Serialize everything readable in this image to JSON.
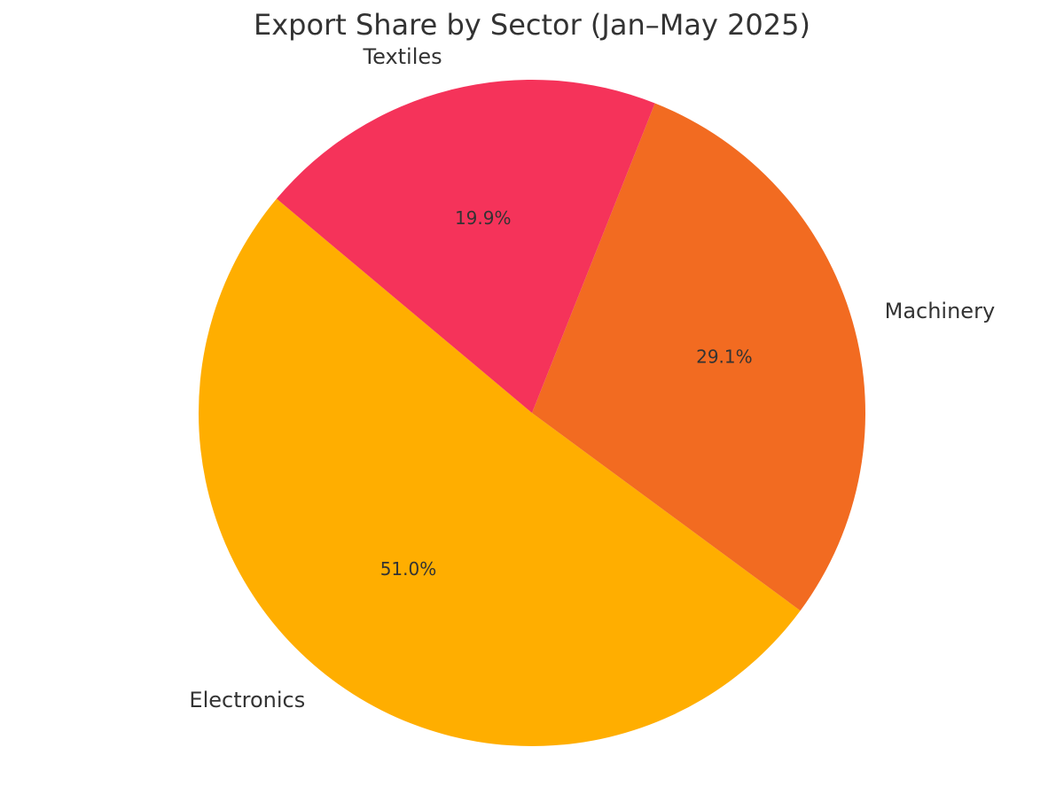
{
  "chart_data": {
    "type": "pie",
    "title": "Export Share by Sector (Jan–May 2025)",
    "categories": [
      "Electronics",
      "Machinery",
      "Textiles"
    ],
    "values": [
      51.0,
      29.1,
      19.9
    ],
    "value_labels": [
      "51.0%",
      "29.1%",
      "19.9%"
    ],
    "colors": [
      "#ffae00",
      "#f26b21",
      "#f5335a"
    ]
  }
}
